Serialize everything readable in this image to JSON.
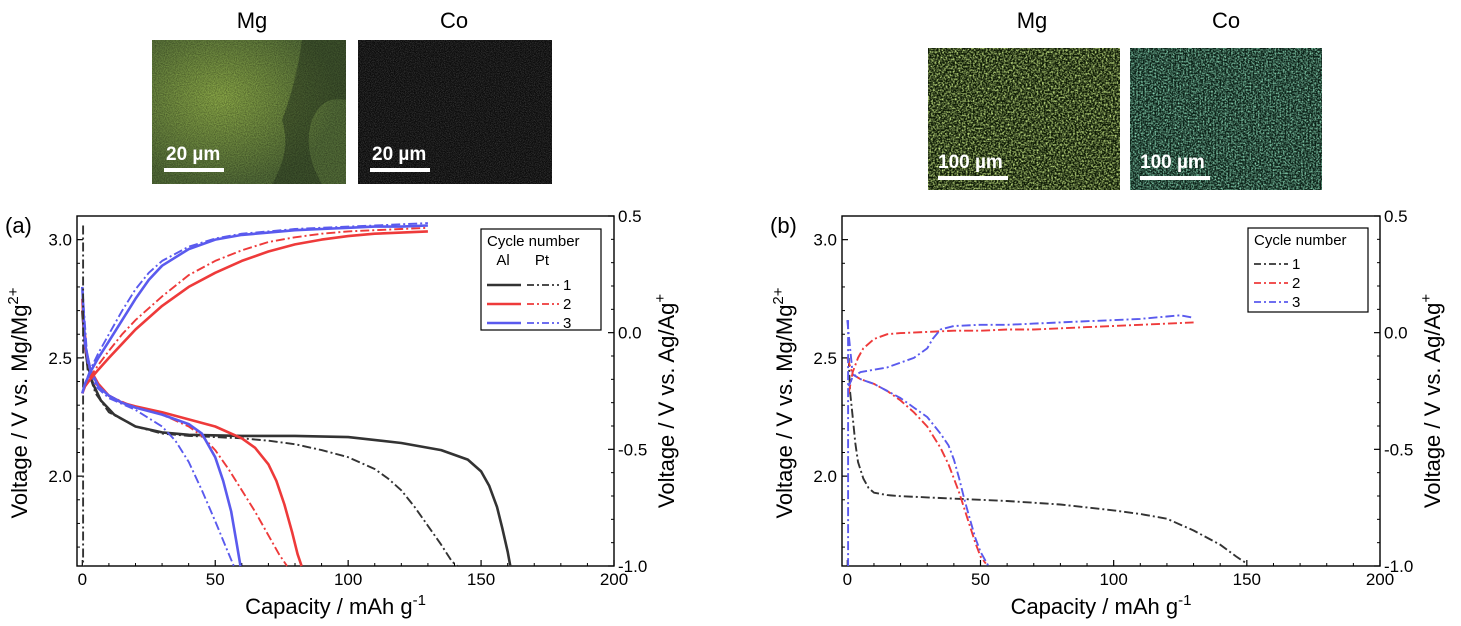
{
  "figure": {
    "left_panel": {
      "letter": "(a)",
      "maps": [
        {
          "element": "Mg",
          "scale_text": "20 µm",
          "tint": "#8fb048"
        },
        {
          "element": "Co",
          "scale_text": "20 µm",
          "tint": "#2a2a2a"
        }
      ]
    },
    "right_panel": {
      "letter": "(b)",
      "maps": [
        {
          "element": "Mg",
          "scale_text": "100 µm",
          "tint": "#9ad03a"
        },
        {
          "element": "Co",
          "scale_text": "100 µm",
          "tint": "#3cc28a"
        }
      ]
    }
  },
  "chart_data": [
    {
      "type": "line",
      "panel_label": "(a)",
      "xlabel": "Capacity / mAh g",
      "xlabel_superscript": "-1",
      "ylabel": "Voltage / V vs. Mg/Mg",
      "ylabel_superscript": "2+",
      "y2label": "Voltage / V vs. Ag/Ag",
      "y2label_superscript": "+",
      "xlim": [
        -2,
        200
      ],
      "ylim": [
        1.62,
        3.1
      ],
      "y2lim": [
        -1.0,
        0.5
      ],
      "x_ticks": [
        0,
        50,
        100,
        150,
        200
      ],
      "y_ticks": [
        2.0,
        2.5,
        3.0
      ],
      "y2_ticks": [
        -1.0,
        -0.5,
        0.0,
        0.5
      ],
      "y2_tick_labels": [
        "-1.0",
        "-0.5",
        "0.0",
        "0.5"
      ],
      "legend": {
        "title": "Cycle number",
        "columns": [
          "Al",
          "Pt"
        ],
        "entries": [
          "1",
          "2",
          "3"
        ],
        "position": "top-right"
      },
      "colors": {
        "1": "#333333",
        "2": "#ee3a3a",
        "3": "#5a5aee"
      },
      "series": [
        {
          "cycle": "1",
          "electrode": "Al",
          "style": "solid",
          "kind": "discharge",
          "x": [
            0,
            1,
            2,
            4,
            7,
            12,
            20,
            30,
            40,
            60,
            80,
            100,
            120,
            135,
            145,
            150,
            153,
            156,
            158,
            160,
            161
          ],
          "y": [
            2.7,
            2.55,
            2.47,
            2.39,
            2.32,
            2.26,
            2.21,
            2.185,
            2.175,
            2.17,
            2.17,
            2.165,
            2.14,
            2.11,
            2.07,
            2.02,
            1.96,
            1.87,
            1.78,
            1.68,
            1.62
          ]
        },
        {
          "cycle": "1",
          "electrode": "Pt",
          "style": "dashdot",
          "kind": "discharge",
          "x": [
            0,
            2,
            5,
            10,
            20,
            30,
            40,
            50,
            60,
            70,
            80,
            90,
            100,
            110,
            115,
            120,
            125,
            130,
            135,
            139,
            141
          ],
          "y": [
            2.7,
            2.45,
            2.35,
            2.27,
            2.21,
            2.18,
            2.17,
            2.165,
            2.16,
            2.15,
            2.135,
            2.11,
            2.08,
            2.03,
            1.99,
            1.94,
            1.87,
            1.79,
            1.71,
            1.64,
            1.62
          ]
        },
        {
          "cycle": "2",
          "electrode": "Al",
          "style": "solid",
          "kind": "discharge",
          "x": [
            0,
            1,
            3,
            6,
            10,
            15,
            20,
            30,
            40,
            50,
            60,
            65,
            70,
            73,
            76,
            79,
            81,
            82.5
          ],
          "y": [
            2.75,
            2.55,
            2.45,
            2.39,
            2.34,
            2.31,
            2.295,
            2.27,
            2.24,
            2.21,
            2.16,
            2.12,
            2.05,
            1.98,
            1.88,
            1.76,
            1.67,
            1.62
          ]
        },
        {
          "cycle": "2",
          "electrode": "Pt",
          "style": "dashdot",
          "kind": "discharge",
          "x": [
            0,
            2,
            5,
            10,
            20,
            30,
            40,
            45,
            50,
            55,
            60,
            65,
            70,
            74,
            77
          ],
          "y": [
            2.75,
            2.48,
            2.39,
            2.34,
            2.29,
            2.26,
            2.21,
            2.17,
            2.11,
            2.03,
            1.94,
            1.85,
            1.75,
            1.67,
            1.62
          ]
        },
        {
          "cycle": "3",
          "electrode": "Al",
          "style": "solid",
          "kind": "discharge",
          "x": [
            0,
            1,
            3,
            6,
            10,
            15,
            20,
            30,
            40,
            45,
            50,
            53,
            56,
            58,
            59.5
          ],
          "y": [
            2.8,
            2.56,
            2.45,
            2.38,
            2.34,
            2.31,
            2.29,
            2.26,
            2.22,
            2.18,
            2.08,
            1.98,
            1.85,
            1.72,
            1.62
          ]
        },
        {
          "cycle": "3",
          "electrode": "Pt",
          "style": "dashdot",
          "kind": "discharge",
          "x": [
            0,
            2,
            5,
            10,
            20,
            30,
            35,
            40,
            45,
            50,
            54,
            57
          ],
          "y": [
            2.8,
            2.48,
            2.38,
            2.33,
            2.28,
            2.21,
            2.15,
            2.06,
            1.94,
            1.81,
            1.7,
            1.62
          ]
        },
        {
          "cycle": "1",
          "electrode": "Pt",
          "style": "dashdot",
          "kind": "spike",
          "x": [
            0.3,
            0.3,
            0.3
          ],
          "y": [
            3.06,
            2.4,
            1.62
          ]
        },
        {
          "cycle": "2",
          "electrode": "Al",
          "style": "solid",
          "kind": "charge",
          "x": [
            0,
            1,
            3,
            6,
            10,
            15,
            20,
            30,
            40,
            50,
            60,
            70,
            80,
            90,
            100,
            110,
            120,
            130
          ],
          "y": [
            2.35,
            2.38,
            2.41,
            2.45,
            2.5,
            2.56,
            2.62,
            2.72,
            2.8,
            2.86,
            2.91,
            2.95,
            2.98,
            3.0,
            3.015,
            3.025,
            3.03,
            3.035
          ]
        },
        {
          "cycle": "2",
          "electrode": "Pt",
          "style": "dashdot",
          "kind": "charge",
          "x": [
            0,
            1,
            3,
            6,
            10,
            15,
            20,
            30,
            40,
            50,
            60,
            70,
            80,
            90,
            100,
            110,
            120,
            130
          ],
          "y": [
            2.35,
            2.38,
            2.42,
            2.47,
            2.53,
            2.6,
            2.66,
            2.76,
            2.85,
            2.91,
            2.955,
            2.99,
            3.01,
            3.025,
            3.035,
            3.04,
            3.045,
            3.05
          ]
        },
        {
          "cycle": "3",
          "electrode": "Al",
          "style": "solid",
          "kind": "charge",
          "x": [
            0,
            1,
            3,
            6,
            10,
            15,
            20,
            25,
            30,
            40,
            50,
            60,
            70,
            80,
            90,
            100,
            110,
            120,
            130
          ],
          "y": [
            2.35,
            2.39,
            2.44,
            2.5,
            2.57,
            2.66,
            2.75,
            2.83,
            2.89,
            2.96,
            3.0,
            3.02,
            3.03,
            3.04,
            3.045,
            3.05,
            3.055,
            3.055,
            3.06
          ]
        },
        {
          "cycle": "3",
          "electrode": "Pt",
          "style": "dashdot",
          "kind": "charge",
          "x": [
            0,
            1,
            3,
            6,
            10,
            15,
            20,
            25,
            30,
            40,
            50,
            60,
            70,
            80,
            90,
            100,
            110,
            120,
            130
          ],
          "y": [
            2.35,
            2.39,
            2.45,
            2.52,
            2.6,
            2.7,
            2.79,
            2.86,
            2.91,
            2.97,
            3.005,
            3.025,
            3.035,
            3.045,
            3.05,
            3.055,
            3.06,
            3.065,
            3.07
          ]
        }
      ]
    },
    {
      "type": "line",
      "panel_label": "(b)",
      "xlabel": "Capacity / mAh g",
      "xlabel_superscript": "-1",
      "ylabel": "Voltage / V vs. Mg/Mg",
      "ylabel_superscript": "2+",
      "y2label": "Voltage / V vs. Ag/Ag",
      "y2label_superscript": "+",
      "xlim": [
        -2,
        200
      ],
      "ylim": [
        1.62,
        3.1
      ],
      "y2lim": [
        -1.0,
        0.5
      ],
      "x_ticks": [
        0,
        50,
        100,
        150,
        200
      ],
      "y_ticks": [
        2.0,
        2.5,
        3.0
      ],
      "y2_ticks": [
        -1.0,
        -0.5,
        0.0,
        0.5
      ],
      "y2_tick_labels": [
        "-1.0",
        "-0.5",
        "0.0",
        "0.5"
      ],
      "legend": {
        "title": "Cycle number",
        "entries": [
          "1",
          "2",
          "3"
        ],
        "position": "top-right"
      },
      "colors": {
        "1": "#333333",
        "2": "#ee3a3a",
        "3": "#5a5aee"
      },
      "series": [
        {
          "cycle": "1",
          "style": "dashdot",
          "kind": "discharge",
          "x": [
            0.5,
            1,
            2,
            3,
            4,
            6,
            8,
            10,
            15,
            20,
            30,
            40,
            60,
            80,
            100,
            110,
            120,
            130,
            140,
            146,
            150
          ],
          "y": [
            2.5,
            2.36,
            2.25,
            2.14,
            2.06,
            1.99,
            1.95,
            1.93,
            1.92,
            1.915,
            1.91,
            1.905,
            1.895,
            1.88,
            1.855,
            1.84,
            1.82,
            1.77,
            1.71,
            1.66,
            1.63
          ]
        },
        {
          "cycle": "2",
          "style": "dashdot",
          "kind": "discharge",
          "x": [
            0,
            2,
            5,
            10,
            15,
            20,
            25,
            30,
            35,
            38,
            40,
            42,
            44,
            46,
            48,
            50,
            52
          ],
          "y": [
            2.5,
            2.43,
            2.41,
            2.39,
            2.36,
            2.32,
            2.27,
            2.21,
            2.12,
            2.05,
            1.99,
            1.93,
            1.86,
            1.79,
            1.72,
            1.66,
            1.63
          ]
        },
        {
          "cycle": "3",
          "style": "dashdot",
          "kind": "discharge",
          "x": [
            0,
            2,
            5,
            10,
            15,
            20,
            25,
            30,
            35,
            38,
            40,
            42,
            44,
            46,
            48,
            50,
            52,
            53
          ],
          "y": [
            2.66,
            2.43,
            2.41,
            2.39,
            2.36,
            2.33,
            2.29,
            2.25,
            2.18,
            2.13,
            2.07,
            1.99,
            1.9,
            1.82,
            1.74,
            1.68,
            1.64,
            1.62
          ]
        },
        {
          "cycle": "2",
          "style": "dashdot",
          "kind": "charge",
          "x": [
            0.5,
            2,
            4,
            6,
            10,
            15,
            20,
            30,
            40,
            50,
            60,
            70,
            80,
            90,
            100,
            110,
            120,
            130
          ],
          "y": [
            2.35,
            2.44,
            2.5,
            2.54,
            2.58,
            2.6,
            2.605,
            2.61,
            2.615,
            2.615,
            2.62,
            2.62,
            2.625,
            2.63,
            2.635,
            2.64,
            2.645,
            2.65
          ]
        },
        {
          "cycle": "3",
          "style": "dashdot",
          "kind": "charge",
          "x": [
            0.5,
            2,
            5,
            10,
            15,
            20,
            25,
            30,
            32,
            35,
            40,
            50,
            60,
            70,
            80,
            90,
            100,
            110,
            120,
            125,
            130
          ],
          "y": [
            2.38,
            2.42,
            2.44,
            2.45,
            2.46,
            2.48,
            2.5,
            2.54,
            2.58,
            2.62,
            2.635,
            2.64,
            2.64,
            2.645,
            2.65,
            2.655,
            2.66,
            2.665,
            2.675,
            2.68,
            2.67
          ]
        },
        {
          "cycle": "3",
          "style": "dashdot",
          "kind": "spike",
          "x": [
            0.3,
            0.3,
            0.3
          ],
          "y": [
            2.66,
            2.1,
            1.62
          ]
        }
      ]
    }
  ]
}
